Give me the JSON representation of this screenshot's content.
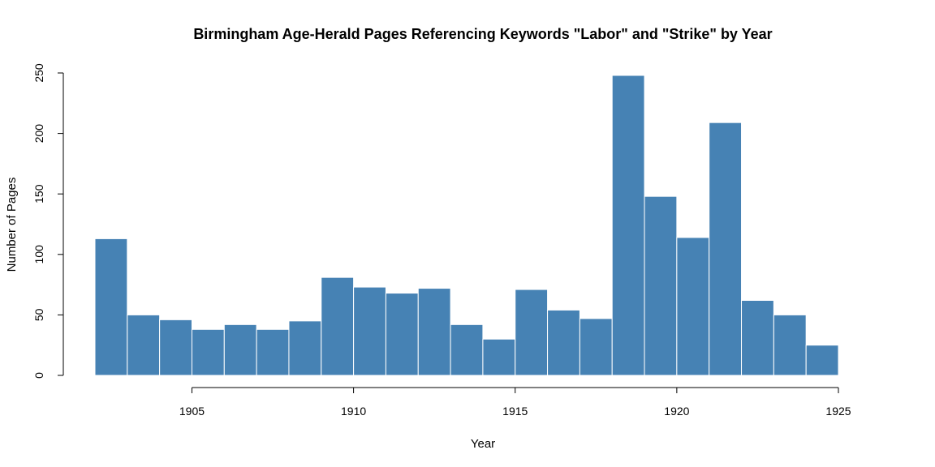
{
  "chart_data": {
    "type": "bar",
    "title": "Birmingham Age-Herald Pages Referencing Keywords \"Labor\" and \"Strike\" by Year",
    "xlabel": "Year",
    "ylabel": "Number of Pages",
    "bar_color": "#4682B4",
    "xlim": [
      1902,
      1925
    ],
    "ylim": [
      0,
      250
    ],
    "x_ticks": [
      1905,
      1910,
      1915,
      1920,
      1925
    ],
    "y_ticks": [
      0,
      50,
      100,
      150,
      200,
      250
    ],
    "grid": false,
    "bins": [
      {
        "start": 1902,
        "end": 1903,
        "value": 113
      },
      {
        "start": 1903,
        "end": 1904,
        "value": 50
      },
      {
        "start": 1904,
        "end": 1905,
        "value": 46
      },
      {
        "start": 1905,
        "end": 1906,
        "value": 38
      },
      {
        "start": 1906,
        "end": 1907,
        "value": 42
      },
      {
        "start": 1907,
        "end": 1908,
        "value": 38
      },
      {
        "start": 1908,
        "end": 1909,
        "value": 45
      },
      {
        "start": 1909,
        "end": 1910,
        "value": 81
      },
      {
        "start": 1910,
        "end": 1911,
        "value": 73
      },
      {
        "start": 1911,
        "end": 1912,
        "value": 68
      },
      {
        "start": 1912,
        "end": 1913,
        "value": 72
      },
      {
        "start": 1913,
        "end": 1914,
        "value": 42
      },
      {
        "start": 1914,
        "end": 1915,
        "value": 30
      },
      {
        "start": 1915,
        "end": 1916,
        "value": 71
      },
      {
        "start": 1916,
        "end": 1917,
        "value": 54
      },
      {
        "start": 1917,
        "end": 1918,
        "value": 47
      },
      {
        "start": 1918,
        "end": 1919,
        "value": 248
      },
      {
        "start": 1919,
        "end": 1920,
        "value": 148
      },
      {
        "start": 1920,
        "end": 1921,
        "value": 114
      },
      {
        "start": 1921,
        "end": 1922,
        "value": 209
      },
      {
        "start": 1922,
        "end": 1923,
        "value": 62
      },
      {
        "start": 1923,
        "end": 1924,
        "value": 50
      },
      {
        "start": 1924,
        "end": 1925,
        "value": 25
      }
    ]
  }
}
